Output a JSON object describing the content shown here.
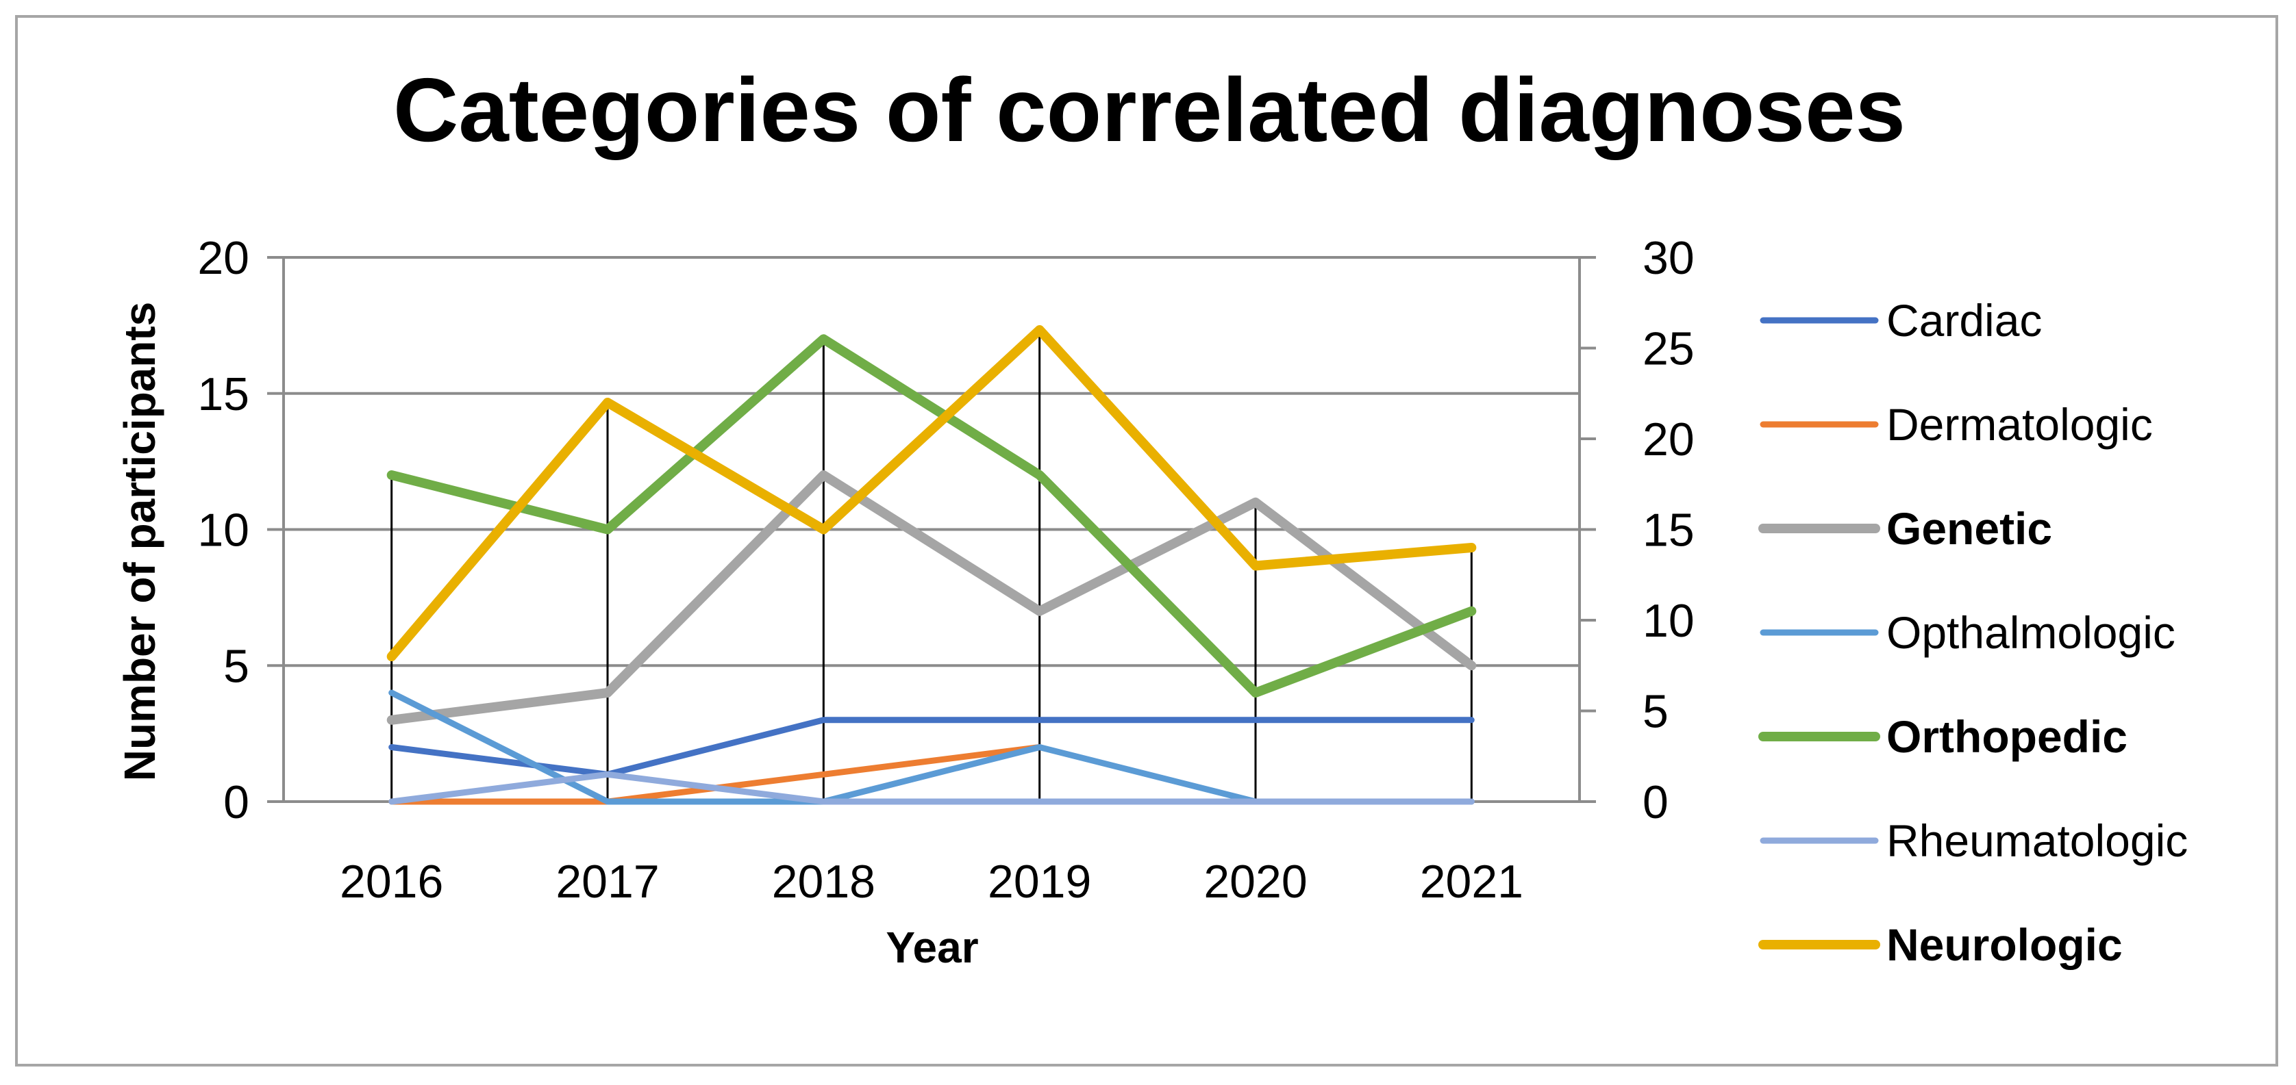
{
  "chart_data": {
    "type": "line",
    "title": "Categories of correlated diagnoses",
    "xlabel": "Year",
    "ylabel": "Number of participants",
    "categories": [
      "2016",
      "2017",
      "2018",
      "2019",
      "2020",
      "2021"
    ],
    "ylim_left": [
      0,
      20
    ],
    "yticks_left": [
      0,
      5,
      10,
      15,
      20
    ],
    "ylim_right": [
      0,
      30
    ],
    "yticks_right": [
      0,
      5,
      10,
      15,
      20,
      25,
      30
    ],
    "grid": true,
    "legend_position": "right",
    "series": [
      {
        "name": "Cardiac",
        "axis": "left",
        "color": "#4472c4",
        "bold": false,
        "values": [
          2,
          1,
          3,
          3,
          3,
          3
        ]
      },
      {
        "name": "Dermatologic",
        "axis": "left",
        "color": "#ed7d31",
        "bold": false,
        "values": [
          0,
          0,
          1,
          2,
          null,
          null
        ]
      },
      {
        "name": "Genetic",
        "axis": "left",
        "color": "#a5a5a5",
        "bold": true,
        "values": [
          3,
          4,
          12,
          7,
          11,
          5
        ]
      },
      {
        "name": "Opthalmologic",
        "axis": "left",
        "color": "#5b9bd5",
        "bold": false,
        "values": [
          4,
          0,
          0,
          2,
          0,
          0
        ]
      },
      {
        "name": "Orthopedic",
        "axis": "left",
        "color": "#70ad47",
        "bold": true,
        "values": [
          12,
          10,
          17,
          12,
          4,
          7
        ]
      },
      {
        "name": "Rheumatologic",
        "axis": "left",
        "color": "#8faadc",
        "bold": false,
        "values": [
          0,
          1,
          0,
          0,
          0,
          0
        ]
      },
      {
        "name": "Neurologic",
        "axis": "right",
        "color": "#e9b000",
        "bold": true,
        "values": [
          8,
          22,
          15,
          26,
          13,
          14
        ]
      }
    ],
    "drop_lines": true
  }
}
